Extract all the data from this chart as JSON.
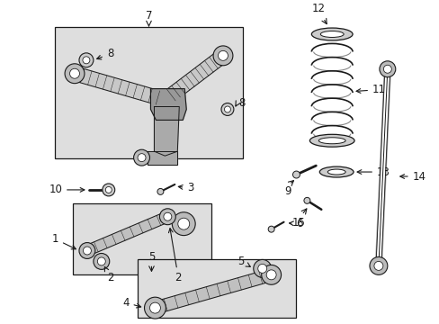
{
  "bg_color": "#ffffff",
  "line_color": "#1a1a1a",
  "box_fill": "#dedede",
  "fig_width": 4.89,
  "fig_height": 3.6,
  "dpi": 100
}
